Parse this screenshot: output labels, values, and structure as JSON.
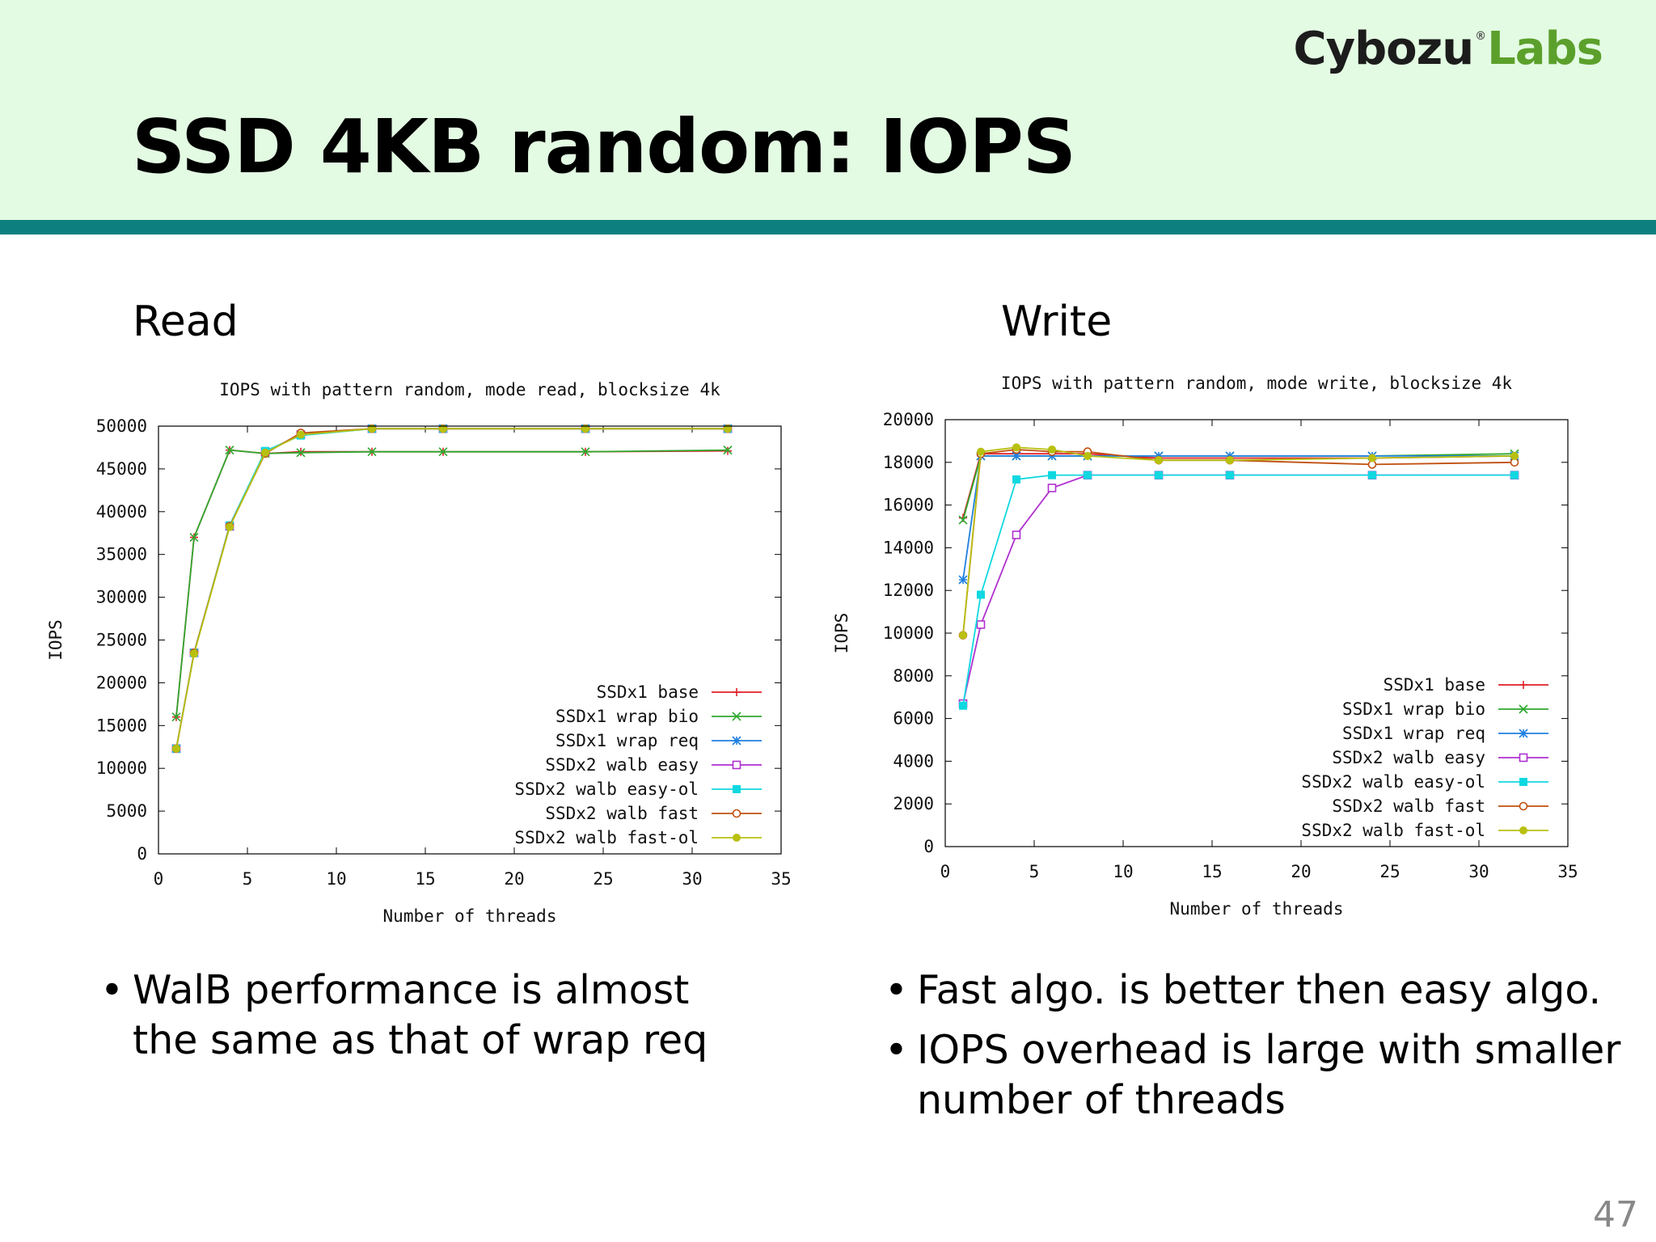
{
  "logo": {
    "part1": "Cybozu",
    "mark": "®",
    "part2": "Labs"
  },
  "slide_title": "SSD 4KB random: IOPS",
  "sections": {
    "read_label": "Read",
    "write_label": "Write"
  },
  "bullets_read": [
    "WalB performance is almost the same as that of wrap req"
  ],
  "bullets_write": [
    "Fast algo. is better then easy algo.",
    "IOPS overhead is large with smaller number of threads"
  ],
  "page_number": "47",
  "series_styles": [
    {
      "name": "SSDx1 base",
      "color": "#e0202a",
      "marker": "plus"
    },
    {
      "name": "SSDx1 wrap bio",
      "color": "#2fa82f",
      "marker": "cross"
    },
    {
      "name": "SSDx1 wrap req",
      "color": "#2080e0",
      "marker": "star"
    },
    {
      "name": "SSDx2 walb easy",
      "color": "#b030d0",
      "marker": "square-open"
    },
    {
      "name": "SSDx2 walb easy-ol",
      "color": "#10d8e0",
      "marker": "square-filled"
    },
    {
      "name": "SSDx2 walb fast",
      "color": "#c05010",
      "marker": "circle-open"
    },
    {
      "name": "SSDx2 walb fast-ol",
      "color": "#b8c010",
      "marker": "circle-filled"
    }
  ],
  "chart_data": [
    {
      "type": "line",
      "title": "IOPS with pattern random, mode read, blocksize 4k",
      "xlabel": "Number of threads",
      "ylabel": "IOPS",
      "xlim": [
        0,
        35
      ],
      "ylim": [
        0,
        50000
      ],
      "xticks": [
        0,
        5,
        10,
        15,
        20,
        25,
        30,
        35
      ],
      "yticks": [
        0,
        5000,
        10000,
        15000,
        20000,
        25000,
        30000,
        35000,
        40000,
        45000,
        50000
      ],
      "legend": "bottom-right",
      "x": [
        1,
        2,
        4,
        6,
        8,
        12,
        16,
        24,
        32
      ],
      "series": [
        {
          "name": "SSDx1 base",
          "values": [
            16000,
            37000,
            47200,
            46800,
            47000,
            47000,
            47000,
            47000,
            47100
          ]
        },
        {
          "name": "SSDx1 wrap bio",
          "values": [
            16000,
            37000,
            47200,
            46800,
            46900,
            47000,
            47000,
            47000,
            47200
          ]
        },
        {
          "name": "SSDx1 wrap req",
          "values": [
            12300,
            23500,
            38300,
            47000,
            49000,
            49700,
            49700,
            49700,
            49700
          ]
        },
        {
          "name": "SSDx2 walb easy",
          "values": [
            12300,
            23500,
            38300,
            47000,
            49000,
            49700,
            49700,
            49700,
            49700
          ]
        },
        {
          "name": "SSDx2 walb easy-ol",
          "values": [
            12300,
            23500,
            38400,
            47100,
            48900,
            49700,
            49700,
            49700,
            49700
          ]
        },
        {
          "name": "SSDx2 walb fast",
          "values": [
            12300,
            23500,
            38300,
            46800,
            49200,
            49700,
            49700,
            49700,
            49700
          ]
        },
        {
          "name": "SSDx2 walb fast-ol",
          "values": [
            12300,
            23400,
            38200,
            46900,
            49000,
            49700,
            49700,
            49700,
            49700
          ]
        }
      ]
    },
    {
      "type": "line",
      "title": "IOPS with pattern random, mode write, blocksize 4k",
      "xlabel": "Number of threads",
      "ylabel": "IOPS",
      "xlim": [
        0,
        35
      ],
      "ylim": [
        0,
        20000
      ],
      "xticks": [
        0,
        5,
        10,
        15,
        20,
        25,
        30,
        35
      ],
      "yticks": [
        0,
        2000,
        4000,
        6000,
        8000,
        10000,
        12000,
        14000,
        16000,
        18000,
        20000
      ],
      "legend": "bottom-right",
      "x": [
        1,
        2,
        4,
        6,
        8,
        12,
        16,
        24,
        32
      ],
      "series": [
        {
          "name": "SSDx1 base",
          "values": [
            15400,
            18400,
            18400,
            18400,
            18400,
            18200,
            18200,
            18200,
            18300
          ]
        },
        {
          "name": "SSDx1 wrap bio",
          "values": [
            15300,
            18300,
            18300,
            18300,
            18300,
            18300,
            18300,
            18300,
            18400
          ]
        },
        {
          "name": "SSDx1 wrap req",
          "values": [
            12500,
            18300,
            18300,
            18300,
            18300,
            18300,
            18300,
            18300,
            18300
          ]
        },
        {
          "name": "SSDx2 walb easy",
          "values": [
            6700,
            10400,
            14600,
            16800,
            17400,
            17400,
            17400,
            17400,
            17400
          ]
        },
        {
          "name": "SSDx2 walb easy-ol",
          "values": [
            6600,
            11800,
            17200,
            17400,
            17400,
            17400,
            17400,
            17400,
            17400
          ]
        },
        {
          "name": "SSDx2 walb fast",
          "values": [
            9900,
            18400,
            18600,
            18500,
            18500,
            18100,
            18100,
            17900,
            18000
          ]
        },
        {
          "name": "SSDx2 walb fast-ol",
          "values": [
            9900,
            18500,
            18700,
            18600,
            18300,
            18100,
            18100,
            18200,
            18300
          ]
        }
      ]
    }
  ]
}
